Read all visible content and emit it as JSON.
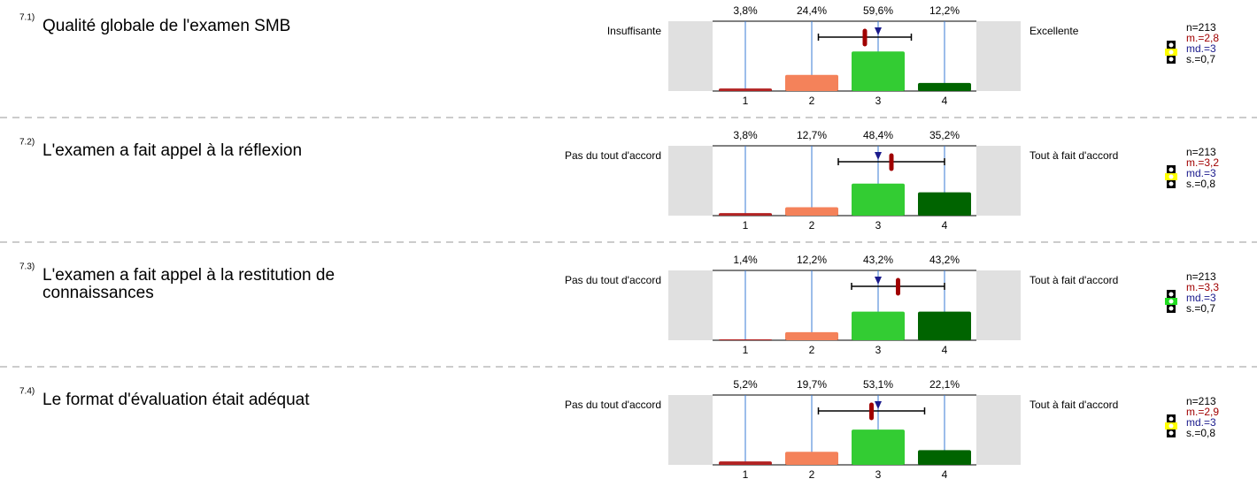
{
  "chart_data": [
    {
      "type": "bar",
      "number": "7.1)",
      "title": "Qualité globale de l'examen SMB",
      "left_label": "Insuffisante",
      "right_label": "Excellente",
      "categories": [
        "1",
        "2",
        "3",
        "4"
      ],
      "values": [
        3.8,
        24.4,
        59.6,
        12.2
      ],
      "value_labels": [
        "3,8%",
        "24,4%",
        "59,6%",
        "12,2%"
      ],
      "colors": [
        "#b22222",
        "#f4825a",
        "#33cc33",
        "#006400"
      ],
      "ylim": [
        0,
        100
      ],
      "grid": true,
      "n_label": "n=213",
      "mean": 2.8,
      "mean_label": "m.=2,8",
      "median": 3,
      "median_label": "md.=3",
      "sd": 0.7,
      "sd_label": "s.=0,7",
      "rating_color": "#ffff00"
    },
    {
      "type": "bar",
      "number": "7.2)",
      "title": "L'examen a fait appel à la réflexion",
      "left_label": "Pas du tout d'accord",
      "right_label": "Tout à fait d'accord",
      "categories": [
        "1",
        "2",
        "3",
        "4"
      ],
      "values": [
        3.8,
        12.7,
        48.4,
        35.2
      ],
      "value_labels": [
        "3,8%",
        "12,7%",
        "48,4%",
        "35,2%"
      ],
      "colors": [
        "#b22222",
        "#f4825a",
        "#33cc33",
        "#006400"
      ],
      "ylim": [
        0,
        100
      ],
      "grid": true,
      "n_label": "n=213",
      "mean": 3.2,
      "mean_label": "m.=3,2",
      "median": 3,
      "median_label": "md.=3",
      "sd": 0.8,
      "sd_label": "s.=0,8",
      "rating_color": "#ffff00"
    },
    {
      "type": "bar",
      "number": "7.3)",
      "title": "L'examen a fait appel à la restitution de connaissances",
      "left_label": "Pas du tout d'accord",
      "right_label": "Tout à fait d'accord",
      "categories": [
        "1",
        "2",
        "3",
        "4"
      ],
      "values": [
        1.4,
        12.2,
        43.2,
        43.2
      ],
      "value_labels": [
        "1,4%",
        "12,2%",
        "43,2%",
        "43,2%"
      ],
      "colors": [
        "#b22222",
        "#f4825a",
        "#33cc33",
        "#006400"
      ],
      "ylim": [
        0,
        100
      ],
      "grid": true,
      "n_label": "n=213",
      "mean": 3.3,
      "mean_label": "m.=3,3",
      "median": 3,
      "median_label": "md.=3",
      "sd": 0.7,
      "sd_label": "s.=0,7",
      "rating_color": "#22dd22"
    },
    {
      "type": "bar",
      "number": "7.4)",
      "title": "Le format d'évaluation était adéquat",
      "left_label": "Pas du tout d'accord",
      "right_label": "Tout à fait d'accord",
      "categories": [
        "1",
        "2",
        "3",
        "4"
      ],
      "values": [
        5.2,
        19.7,
        53.1,
        22.1
      ],
      "value_labels": [
        "5,2%",
        "19,7%",
        "53,1%",
        "22,1%"
      ],
      "colors": [
        "#b22222",
        "#f4825a",
        "#33cc33",
        "#006400"
      ],
      "ylim": [
        0,
        100
      ],
      "grid": true,
      "n_label": "n=213",
      "mean": 2.9,
      "mean_label": "m.=2,9",
      "median": 3,
      "median_label": "md.=3",
      "sd": 0.8,
      "sd_label": "s.=0,8",
      "rating_color": "#ffff00"
    }
  ]
}
